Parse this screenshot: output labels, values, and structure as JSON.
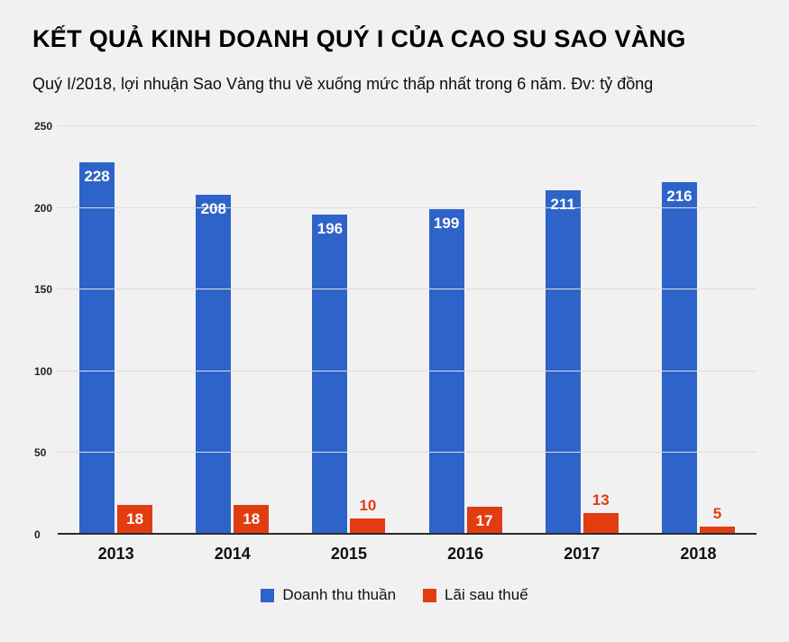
{
  "page": {
    "title": "KẾT QUẢ KINH DOANH QUÝ I CỦA CAO SU SAO VÀNG",
    "subtitle": "Quý I/2018, lợi nhuận Sao Vàng thu về xuống mức thấp nhất trong 6 năm. Đv: tỷ đồng"
  },
  "chart_data": {
    "type": "bar",
    "title": "KẾT QUẢ KINH DOANH QUÝ I CỦA CAO SU SAO VÀNG",
    "subtitle": "Quý I/2018, lợi nhuận Sao Vàng thu về xuống mức thấp nhất trong 6 năm. Đv: tỷ đồng",
    "categories": [
      "2013",
      "2014",
      "2015",
      "2016",
      "2017",
      "2018"
    ],
    "series": [
      {
        "name": "Doanh thu thuần",
        "color": "#2e64c9",
        "values": [
          228,
          208,
          196,
          199,
          211,
          216
        ]
      },
      {
        "name": "Lãi sau thuế",
        "color": "#e23c11",
        "values": [
          18,
          18,
          10,
          17,
          13,
          5
        ]
      }
    ],
    "xlabel": "",
    "ylabel": "",
    "unit": "tỷ đồng",
    "ylim": [
      0,
      250
    ],
    "yticks": [
      0,
      50,
      100,
      150,
      200,
      250
    ],
    "grid": true,
    "legend_position": "bottom",
    "background": "#f1f1f2",
    "gridline_color": "#dcdcdc"
  }
}
